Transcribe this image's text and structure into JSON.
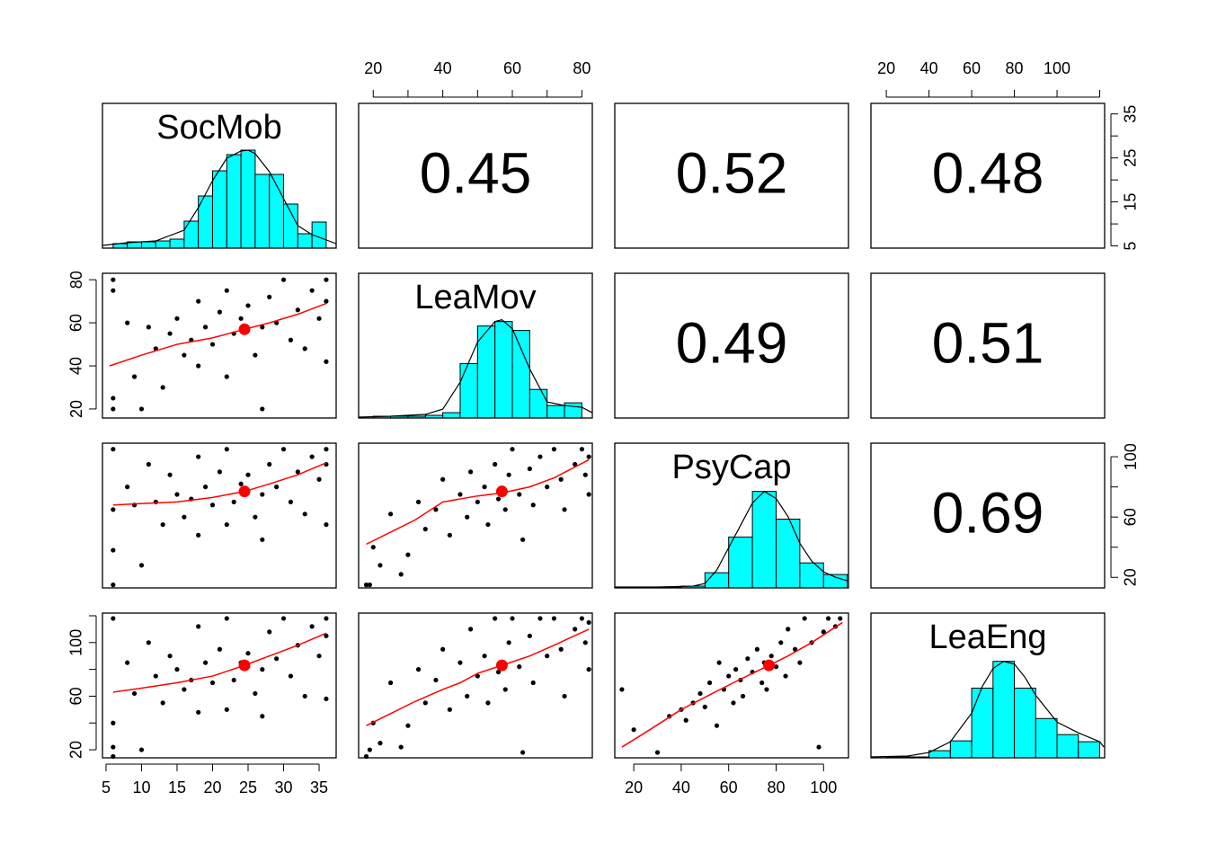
{
  "chart_data": [
    {
      "type": "histogram",
      "title": "SocMob",
      "xlim": [
        4.5,
        37.4
      ],
      "ylim": [
        0,
        161
      ],
      "color": "#00ffff",
      "bins": [
        6,
        8,
        10,
        12,
        14,
        16,
        18,
        20,
        22,
        24,
        26,
        28,
        30,
        32,
        34,
        36
      ],
      "values": [
        5,
        7,
        7,
        8,
        10,
        30,
        58,
        86,
        104,
        109,
        82,
        82,
        49,
        16,
        29
      ],
      "density": {
        "x": [
          4.5,
          8,
          12,
          16,
          18,
          20,
          22,
          24,
          25,
          26,
          28,
          30,
          32,
          34,
          37.4
        ],
        "y": [
          3,
          6,
          8,
          20,
          45,
          75,
          100,
          108,
          109,
          105,
          85,
          55,
          25,
          15,
          5
        ]
      }
    },
    {
      "type": "text",
      "value": 0.45,
      "xlim": [
        15.8,
        83
      ],
      "xticks": [
        20,
        40,
        60,
        80
      ],
      "xticks_minor": [
        30,
        50,
        70
      ]
    },
    {
      "type": "text",
      "value": 0.52
    },
    {
      "type": "text",
      "value": 0.48,
      "xlim": [
        12.8,
        122.3
      ],
      "xticks": [
        20,
        40,
        60,
        80,
        100
      ],
      "xticks_minor": [
        120
      ],
      "ylim": [
        4.5,
        37.4
      ],
      "yticks": [
        5,
        15,
        25,
        35
      ],
      "yticks_minor": [
        10,
        20,
        30
      ]
    },
    {
      "type": "scatter",
      "xlim": [
        4.5,
        37.4
      ],
      "ylim": [
        15.8,
        83
      ],
      "yticks": [
        20,
        40,
        60,
        80
      ],
      "color": "#000000",
      "smooth_color": "#ff0000",
      "x": [
        6,
        6,
        6,
        6,
        8,
        9,
        10,
        11,
        12,
        13,
        14,
        15,
        16,
        17,
        18,
        18,
        19,
        20,
        21,
        22,
        22,
        23,
        24,
        25,
        26,
        27,
        27,
        28,
        29,
        30,
        31,
        32,
        33,
        34,
        35,
        36,
        36,
        36
      ],
      "y": [
        80,
        75,
        25,
        20,
        60,
        35,
        20,
        58,
        48,
        30,
        55,
        62,
        45,
        52,
        70,
        40,
        58,
        50,
        65,
        35,
        75,
        55,
        62,
        68,
        45,
        58,
        20,
        72,
        60,
        80,
        52,
        66,
        48,
        75,
        62,
        80,
        42,
        70
      ],
      "mean": {
        "x": 24.5,
        "y": 57
      },
      "smooth": {
        "x": [
          5.5,
          10,
          15,
          20,
          24.5,
          28,
          32,
          36
        ],
        "y": [
          40,
          45,
          50,
          53,
          57,
          60,
          64,
          69
        ]
      }
    },
    {
      "type": "histogram",
      "title": "LeaMov",
      "xlim": [
        15.8,
        83
      ],
      "ylim": [
        0,
        162
      ],
      "color": "#00ffff",
      "bins": [
        20,
        25,
        30,
        35,
        40,
        45,
        50,
        55,
        60,
        65,
        70,
        75,
        80
      ],
      "values": [
        2,
        2,
        2,
        3,
        6,
        61,
        103,
        108,
        98,
        32,
        14,
        17
      ],
      "density": {
        "x": [
          15.8,
          25,
          35,
          40,
          45,
          50,
          55,
          57,
          60,
          65,
          70,
          75,
          80,
          83
        ],
        "y": [
          1,
          2,
          4,
          10,
          40,
          85,
          108,
          110,
          100,
          55,
          18,
          14,
          12,
          6
        ]
      }
    },
    {
      "type": "text",
      "value": 0.49
    },
    {
      "type": "text",
      "value": 0.51
    },
    {
      "type": "scatter",
      "xlim": [
        4.5,
        37.4
      ],
      "ylim": [
        13,
        109
      ],
      "color": "#000000",
      "smooth_color": "#ff0000",
      "x": [
        6,
        6,
        6,
        6,
        8,
        9,
        10,
        11,
        12,
        13,
        14,
        15,
        16,
        17,
        18,
        18,
        19,
        20,
        21,
        22,
        22,
        23,
        24,
        25,
        26,
        27,
        27,
        28,
        29,
        30,
        31,
        32,
        33,
        34,
        35,
        36,
        36,
        36
      ],
      "y": [
        105,
        38,
        15,
        65,
        80,
        68,
        28,
        95,
        70,
        55,
        88,
        75,
        60,
        72,
        100,
        48,
        80,
        68,
        90,
        55,
        105,
        70,
        82,
        88,
        60,
        75,
        45,
        95,
        80,
        105,
        70,
        90,
        62,
        100,
        85,
        105,
        55,
        95
      ],
      "mean": {
        "x": 24.5,
        "y": 77
      },
      "smooth": {
        "x": [
          6,
          10,
          15,
          20,
          24.5,
          28,
          32,
          36
        ],
        "y": [
          68,
          69,
          70,
          73,
          77,
          82,
          88,
          96
        ]
      }
    },
    {
      "type": "scatter",
      "xlim": [
        15.8,
        83
      ],
      "ylim": [
        13,
        109
      ],
      "color": "#000000",
      "smooth_color": "#ff0000",
      "x": [
        18,
        19,
        20,
        22,
        25,
        28,
        30,
        33,
        35,
        38,
        40,
        42,
        45,
        47,
        48,
        50,
        52,
        53,
        55,
        56,
        57,
        58,
        59,
        60,
        62,
        63,
        65,
        66,
        68,
        70,
        72,
        74,
        75,
        78,
        80,
        81,
        82,
        82
      ],
      "y": [
        15,
        15,
        40,
        28,
        62,
        22,
        35,
        70,
        52,
        65,
        85,
        48,
        75,
        60,
        90,
        70,
        80,
        55,
        95,
        72,
        78,
        65,
        88,
        105,
        75,
        45,
        92,
        68,
        100,
        80,
        105,
        85,
        65,
        95,
        105,
        88,
        100,
        75
      ],
      "mean": {
        "x": 57,
        "y": 77
      },
      "smooth": {
        "x": [
          18,
          25,
          32,
          40,
          45,
          50,
          57,
          65,
          72,
          82
        ],
        "y": [
          42,
          50,
          58,
          70,
          72,
          74,
          76,
          80,
          86,
          98
        ]
      }
    },
    {
      "type": "histogram",
      "title": "PsyCap",
      "xlim": [
        12,
        110.5
      ],
      "ylim": [
        0,
        162
      ],
      "color": "#00ffff",
      "bins": [
        20,
        30,
        40,
        50,
        60,
        70,
        80,
        90,
        100,
        110
      ],
      "values": [
        1,
        1,
        2,
        17,
        57,
        108,
        77,
        28,
        15
      ],
      "density": {
        "x": [
          12,
          30,
          45,
          50,
          55,
          60,
          65,
          70,
          75,
          80,
          85,
          90,
          95,
          100,
          105,
          110
        ],
        "y": [
          1,
          1,
          2,
          5,
          20,
          45,
          70,
          95,
          108,
          100,
          80,
          50,
          30,
          18,
          12,
          8
        ]
      }
    },
    {
      "type": "text",
      "value": 0.69,
      "ylim": [
        13,
        109
      ],
      "yticks": [
        20,
        60,
        100
      ],
      "yticks_minor": [
        40,
        80
      ]
    },
    {
      "type": "scatter",
      "xlim": [
        4.5,
        37.4
      ],
      "ylim": [
        14,
        122
      ],
      "xticks": [
        5,
        10,
        15,
        20,
        25,
        30,
        35
      ],
      "yticks": [
        20,
        60,
        100
      ],
      "yticks_minor": [
        40,
        80,
        120
      ],
      "color": "#000000",
      "smooth_color": "#ff0000",
      "x": [
        6,
        6,
        6,
        6,
        8,
        9,
        10,
        11,
        12,
        13,
        14,
        15,
        16,
        17,
        18,
        18,
        19,
        20,
        21,
        22,
        22,
        23,
        24,
        25,
        26,
        27,
        27,
        28,
        29,
        30,
        31,
        32,
        33,
        34,
        35,
        36,
        36,
        36
      ],
      "y": [
        118,
        40,
        15,
        22,
        85,
        62,
        20,
        100,
        75,
        55,
        90,
        80,
        65,
        72,
        112,
        48,
        85,
        70,
        95,
        50,
        118,
        72,
        85,
        92,
        62,
        80,
        45,
        108,
        88,
        118,
        75,
        98,
        60,
        112,
        90,
        118,
        58,
        105
      ],
      "mean": {
        "x": 24.5,
        "y": 83
      },
      "smooth": {
        "x": [
          6,
          10,
          15,
          20,
          24.5,
          28,
          32,
          36
        ],
        "y": [
          63,
          66,
          70,
          75,
          83,
          90,
          98,
          107
        ]
      }
    },
    {
      "type": "scatter",
      "xlim": [
        15.8,
        83
      ],
      "ylim": [
        14,
        122
      ],
      "color": "#000000",
      "smooth_color": "#ff0000",
      "x": [
        18,
        19,
        20,
        22,
        25,
        28,
        30,
        33,
        35,
        38,
        40,
        42,
        45,
        47,
        48,
        50,
        52,
        53,
        55,
        56,
        57,
        58,
        59,
        60,
        62,
        63,
        65,
        66,
        68,
        70,
        72,
        74,
        75,
        78,
        80,
        81,
        82,
        82
      ],
      "y": [
        15,
        20,
        40,
        25,
        70,
        22,
        38,
        80,
        55,
        72,
        95,
        50,
        85,
        60,
        110,
        75,
        90,
        55,
        118,
        78,
        85,
        65,
        100,
        118,
        82,
        18,
        105,
        70,
        118,
        90,
        118,
        95,
        60,
        110,
        118,
        100,
        115,
        80
      ],
      "mean": {
        "x": 57,
        "y": 83
      },
      "smooth": {
        "x": [
          18,
          25,
          32,
          40,
          45,
          50,
          57,
          65,
          72,
          82
        ],
        "y": [
          38,
          47,
          56,
          65,
          70,
          77,
          83,
          90,
          98,
          110
        ]
      }
    },
    {
      "type": "scatter",
      "xlim": [
        12,
        110.5
      ],
      "ylim": [
        14,
        122
      ],
      "xticks": [
        20,
        40,
        60,
        80,
        100
      ],
      "color": "#000000",
      "smooth_color": "#ff0000",
      "x": [
        15,
        20,
        30,
        35,
        40,
        42,
        45,
        48,
        50,
        52,
        55,
        56,
        58,
        60,
        62,
        63,
        65,
        66,
        68,
        70,
        72,
        74,
        75,
        76,
        78,
        80,
        82,
        84,
        85,
        88,
        90,
        92,
        95,
        98,
        100,
        102,
        105,
        107
      ],
      "y": [
        65,
        35,
        18,
        45,
        50,
        42,
        55,
        62,
        52,
        70,
        38,
        85,
        65,
        75,
        55,
        80,
        72,
        60,
        88,
        78,
        95,
        70,
        85,
        65,
        90,
        82,
        100,
        75,
        110,
        95,
        85,
        118,
        100,
        22,
        108,
        118,
        112,
        118
      ],
      "mean": {
        "x": 77,
        "y": 83
      },
      "smooth": {
        "x": [
          15,
          25,
          40,
          52,
          62,
          70,
          77,
          85,
          95,
          108
        ],
        "y": [
          22,
          33,
          50,
          61,
          70,
          77,
          83,
          90,
          100,
          115
        ]
      }
    },
    {
      "type": "histogram",
      "title": "LeaEng",
      "xlim": [
        12.8,
        122.3
      ],
      "ylim": [
        0,
        162
      ],
      "color": "#00ffff",
      "bins": [
        20,
        30,
        40,
        50,
        60,
        70,
        80,
        90,
        100,
        110,
        120
      ],
      "values": [
        1,
        1,
        8,
        19,
        78,
        108,
        78,
        44,
        26,
        18
      ],
      "density": {
        "x": [
          13,
          30,
          40,
          50,
          60,
          65,
          70,
          75,
          80,
          85,
          90,
          100,
          110,
          120,
          122
        ],
        "y": [
          1,
          2,
          6,
          18,
          50,
          80,
          100,
          108,
          105,
          90,
          70,
          40,
          28,
          18,
          12
        ]
      }
    }
  ]
}
